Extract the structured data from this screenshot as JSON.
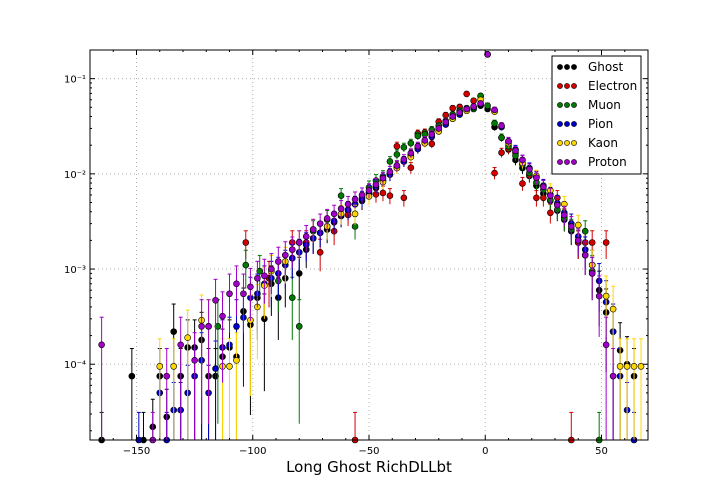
{
  "chart_data": {
    "type": "scatter",
    "title": "",
    "xlabel": "Long Ghost RichDLLbt",
    "ylabel": "",
    "xlim": [
      -170,
      70
    ],
    "ylim": [
      1.6e-05,
      0.2
    ],
    "yscale": "log",
    "grid": true,
    "legend_position": "top-right",
    "x_ticks": [
      -150,
      -100,
      -50,
      0,
      50
    ],
    "x_tick_labels": [
      "−150",
      "−100",
      "−50",
      "0",
      "50"
    ],
    "y_ticks": [
      0.0001,
      0.001,
      0.01,
      0.1
    ],
    "y_tick_labels": [
      "10⁻⁴",
      "10⁻³",
      "10⁻²",
      "10⁻¹"
    ],
    "series": [
      {
        "name": "Ghost",
        "color": "#000000",
        "x": [
          -165,
          -152,
          -147,
          -143,
          -140,
          -137,
          -134,
          -131,
          -128,
          -125,
          -122,
          -119,
          -116,
          -113,
          -110,
          -107,
          -104,
          -101,
          -98,
          -95,
          -92,
          -89,
          -86,
          -83,
          -80,
          -77,
          -74,
          -71,
          -68,
          -65,
          -62,
          -59,
          -56,
          -53,
          -50,
          -47,
          -44,
          -41,
          -38,
          -35,
          -32,
          -29,
          -26,
          -23,
          -20,
          -17,
          -14,
          -11,
          -8,
          -5,
          -2,
          1,
          4,
          7,
          10,
          13,
          16,
          19,
          22,
          25,
          28,
          31,
          34,
          37,
          40,
          43,
          46,
          49,
          52,
          55,
          58,
          61,
          64
        ],
        "y": [
          1.6e-05,
          7.5e-05,
          1.6e-05,
          2.2e-05,
          7.5e-05,
          2.8e-05,
          0.00022,
          7.5e-05,
          0.00015,
          0.00015,
          0.00018,
          7.5e-05,
          7.5e-05,
          0.00012,
          0.00015,
          0.00012,
          0.00036,
          0.00026,
          0.0005,
          0.0003,
          0.0007,
          0.0005,
          0.0008,
          0.0013,
          0.0009,
          0.0016,
          0.0021,
          0.0024,
          0.0026,
          0.0031,
          0.0036,
          0.0041,
          0.0048,
          0.0052,
          0.0063,
          0.0071,
          0.0085,
          0.0098,
          0.012,
          0.0135,
          0.016,
          0.019,
          0.022,
          0.026,
          0.029,
          0.034,
          0.039,
          0.043,
          0.047,
          0.05,
          0.052,
          0.048,
          0.031,
          0.024,
          0.018,
          0.014,
          0.0115,
          0.0095,
          0.0075,
          0.0062,
          0.0052,
          0.0041,
          0.0033,
          0.0025,
          0.0019,
          0.0014,
          0.0009,
          0.0006,
          0.00035,
          0.00022,
          0.00014,
          0.0001,
          7.5e-05
        ]
      },
      {
        "name": "Electron",
        "color": "#d40000",
        "x": [
          -103,
          -93,
          -83,
          -77,
          -71,
          -65,
          -59,
          -56,
          -50,
          -47,
          -44,
          -41,
          -38,
          -35,
          -32,
          -29,
          -26,
          -23,
          -20,
          -17,
          -14,
          -11,
          -8,
          -5,
          -2,
          1,
          4,
          7,
          10,
          13,
          16,
          19,
          22,
          25,
          28,
          31,
          34,
          37,
          40,
          43,
          46,
          52
        ],
        "y": [
          0.0019,
          0.0008,
          0.0019,
          0.0019,
          0.0015,
          0.0025,
          0.0037,
          1.6e-05,
          0.0061,
          0.0061,
          0.0063,
          0.0059,
          0.0195,
          0.0056,
          0.0116,
          0.0265,
          0.0272,
          0.0207,
          0.0352,
          0.0413,
          0.0489,
          0.0504,
          0.0691,
          0.0586,
          0.0652,
          0.0,
          0.0102,
          0.0167,
          0.0183,
          0.0167,
          0.0079,
          0.0097,
          0.0056,
          0.0056,
          0.0039,
          0.0056,
          0.0035,
          1.6e-05,
          0.0019,
          0.0019,
          0.0019,
          0.0019
        ]
      },
      {
        "name": "Muon",
        "color": "#007a00",
        "x": [
          -115,
          -103,
          -97,
          -89,
          -83,
          -80,
          -74,
          -68,
          -62,
          -56,
          -50,
          -47,
          -44,
          -41,
          -38,
          -35,
          -32,
          -29,
          -26,
          -23,
          -20,
          -17,
          -14,
          -11,
          -8,
          -5,
          -2,
          1,
          4,
          7,
          10,
          13,
          16,
          19,
          22,
          25,
          28,
          31,
          34,
          37,
          40,
          43,
          46,
          49
        ],
        "y": [
          0.00025,
          0.0011,
          0.00095,
          0.00075,
          0.0005,
          0.00025,
          0.0025,
          0.0033,
          0.0059,
          0.0028,
          0.0072,
          0.0085,
          0.0094,
          0.0135,
          0.016,
          0.019,
          0.021,
          0.025,
          0.026,
          0.029,
          0.032,
          0.036,
          0.042,
          0.046,
          0.049,
          0.048,
          0.066,
          0.052,
          0.034,
          0.024,
          0.0195,
          0.0155,
          0.0125,
          0.0102,
          0.0081,
          0.0068,
          0.0053,
          0.0042,
          0.0034,
          0.0026,
          0.002,
          0.0025,
          0.00095,
          1.6e-05
        ]
      },
      {
        "name": "Pion",
        "color": "#0000cc",
        "x": [
          -149,
          -140,
          -137,
          -134,
          -131,
          -128,
          -125,
          -122,
          -119,
          -116,
          -113,
          -110,
          -107,
          -104,
          -101,
          -98,
          -95,
          -92,
          -89,
          -86,
          -83,
          -80,
          -77,
          -74,
          -71,
          -68,
          -65,
          -62,
          -59,
          -56,
          -53,
          -50,
          -47,
          -44,
          -41,
          -38,
          -35,
          -32,
          -29,
          -26,
          -23,
          -20,
          -17,
          -14,
          -11,
          -8,
          -5,
          -2,
          1,
          4,
          7,
          10,
          13,
          16,
          19,
          22,
          25,
          28,
          31,
          34,
          37,
          40,
          43,
          46,
          49,
          52,
          55,
          58,
          61,
          64
        ],
        "y": [
          1.6e-05,
          5e-05,
          1.6e-05,
          3.3e-05,
          3.3e-05,
          5e-05,
          7.5e-05,
          0.00011,
          5e-05,
          9e-05,
          0.00015,
          0.00016,
          0.00025,
          0.00031,
          0.0005,
          0.00055,
          0.0007,
          0.0008,
          0.0009,
          0.0011,
          0.0013,
          0.0015,
          0.0018,
          0.0021,
          0.0024,
          0.0028,
          0.0032,
          0.0037,
          0.0042,
          0.0048,
          0.0055,
          0.0064,
          0.0074,
          0.0086,
          0.0099,
          0.0116,
          0.0135,
          0.0155,
          0.0182,
          0.021,
          0.0245,
          0.028,
          0.033,
          0.038,
          0.042,
          0.047,
          0.05,
          0.054,
          0.18,
          0.046,
          0.031,
          0.022,
          0.018,
          0.014,
          0.0115,
          0.0093,
          0.0075,
          0.0061,
          0.0049,
          0.0039,
          0.003,
          0.0022,
          0.0016,
          0.0011,
          0.00075,
          0.00045,
          0.00022,
          7.5e-05,
          3.3e-05,
          1.6e-05
        ]
      },
      {
        "name": "Kaon",
        "color": "#ffd700",
        "x": [
          -140,
          -134,
          -128,
          -122,
          -119,
          -113,
          -110,
          -107,
          -101,
          -98,
          -95,
          -92,
          -86,
          -80,
          -74,
          -68,
          -62,
          -56,
          -50,
          -44,
          -38,
          -32,
          -26,
          -20,
          -14,
          -8,
          -2,
          4,
          10,
          16,
          22,
          28,
          34,
          40,
          46,
          52,
          55,
          58,
          61,
          64,
          67
        ],
        "y": [
          9.5e-05,
          9.5e-05,
          0.00019,
          0.00029,
          0.00025,
          9.5e-05,
          9.5e-05,
          0.00011,
          0.00029,
          0.0004,
          0.00067,
          0.00095,
          0.0012,
          0.0019,
          0.0026,
          0.0028,
          0.0038,
          0.0038,
          0.0058,
          0.0082,
          0.0115,
          0.015,
          0.021,
          0.028,
          0.038,
          0.046,
          0.06,
          0.045,
          0.021,
          0.013,
          0.0095,
          0.0067,
          0.0048,
          0.0029,
          0.0011,
          0.00052,
          0.00038,
          9.5e-05,
          9.5e-05,
          9.5e-05,
          9.5e-05
        ]
      },
      {
        "name": "Proton",
        "color": "#a000c8",
        "x": [
          -165,
          -143,
          -137,
          -131,
          -125,
          -122,
          -119,
          -116,
          -113,
          -110,
          -107,
          -104,
          -101,
          -98,
          -95,
          -92,
          -89,
          -86,
          -83,
          -80,
          -77,
          -74,
          -71,
          -68,
          -65,
          -62,
          -59,
          -56,
          -53,
          -50,
          -47,
          -44,
          -41,
          -38,
          -35,
          -32,
          -29,
          -26,
          -23,
          -20,
          -17,
          -14,
          -11,
          -8,
          -5,
          -2,
          1,
          4,
          7,
          10,
          13,
          16,
          19,
          22,
          25,
          28,
          31,
          34,
          37,
          40,
          43,
          46,
          49,
          52,
          55
        ],
        "y": [
          0.00016,
          1.6e-05,
          7.5e-05,
          0.00016,
          0.00011,
          0.00025,
          0.00025,
          0.00047,
          0.00032,
          0.00055,
          0.0007,
          0.00055,
          0.00065,
          0.0008,
          0.00085,
          0.001,
          0.0012,
          0.0014,
          0.0016,
          0.0019,
          0.0022,
          0.0026,
          0.003,
          0.0034,
          0.0038,
          0.0043,
          0.0048,
          0.0054,
          0.006,
          0.0067,
          0.0077,
          0.009,
          0.0105,
          0.0122,
          0.0142,
          0.0165,
          0.0195,
          0.0225,
          0.026,
          0.03,
          0.035,
          0.04,
          0.044,
          0.048,
          0.051,
          0.055,
          0.18,
          0.047,
          0.032,
          0.022,
          0.0175,
          0.014,
          0.0112,
          0.0091,
          0.0073,
          0.0059,
          0.0047,
          0.0037,
          0.0028,
          0.002,
          0.0014,
          0.0009,
          0.00052,
          0.00016,
          7.5e-05
        ]
      }
    ]
  }
}
